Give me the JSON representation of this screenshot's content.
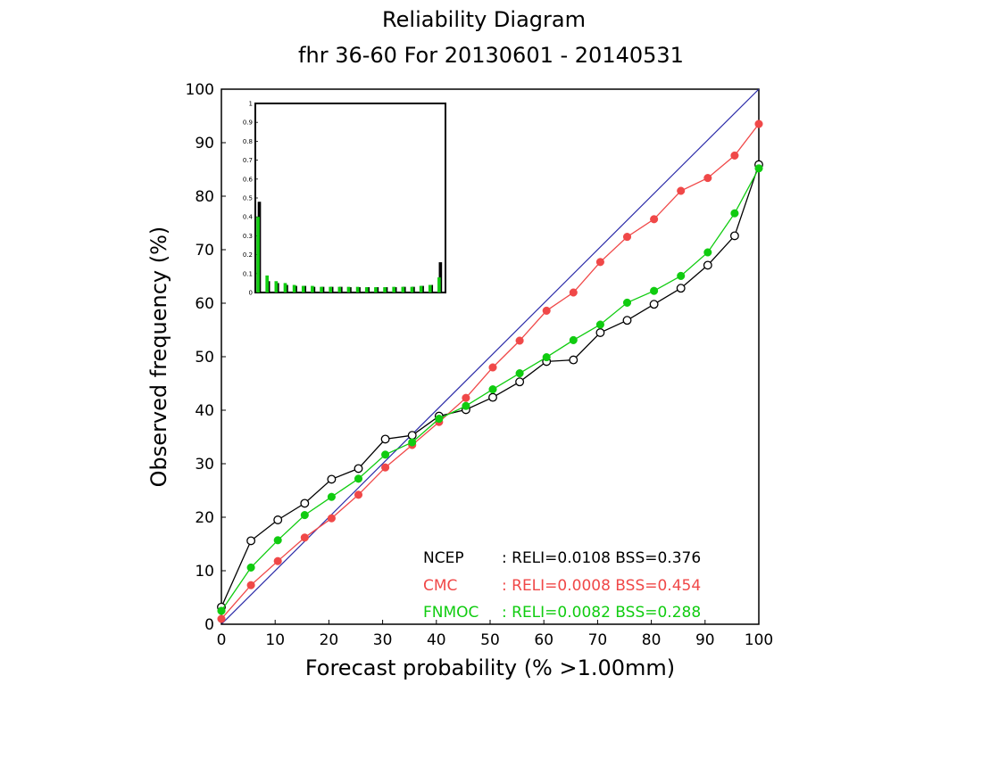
{
  "chart_data": {
    "type": "line",
    "title": "Reliability Diagram",
    "subtitle": "fhr 36-60 For 20130601 - 20140531",
    "xlabel": "Forecast probability (% >1.00mm)",
    "ylabel": "Observed frequency (%)",
    "xlim": [
      0,
      100
    ],
    "ylim": [
      0,
      100
    ],
    "x_ticks": [
      "0",
      "10",
      "20",
      "30",
      "40",
      "50",
      "60",
      "70",
      "80",
      "90",
      "100"
    ],
    "y_ticks": [
      "0",
      "10",
      "20",
      "30",
      "40",
      "50",
      "60",
      "70",
      "80",
      "90",
      "100"
    ],
    "diagonal_color": "#2a2aa8",
    "series": [
      {
        "name": "NCEP",
        "color": "#000000",
        "marker": "open-circle",
        "stats": ": RELI=0.0108 BSS=0.376",
        "x": [
          0,
          5.5,
          10.5,
          15.5,
          20.5,
          25.5,
          30.5,
          35.5,
          40.5,
          45.5,
          50.5,
          55.5,
          60.5,
          65.5,
          70.5,
          75.5,
          80.5,
          85.5,
          90.5,
          95.5,
          100
        ],
        "y": [
          3.2,
          15.6,
          19.5,
          22.6,
          27.1,
          29.1,
          34.6,
          35.3,
          38.9,
          40.1,
          42.4,
          45.3,
          49.1,
          49.4,
          54.5,
          56.8,
          59.8,
          62.8,
          67.1,
          72.6,
          85.9
        ]
      },
      {
        "name": "CMC",
        "color": "#f04848",
        "marker": "filled-circle",
        "stats": ": RELI=0.0008 BSS=0.454",
        "x": [
          0,
          5.5,
          10.5,
          15.5,
          20.5,
          25.5,
          30.5,
          35.5,
          40.5,
          45.5,
          50.5,
          55.5,
          60.5,
          65.5,
          70.5,
          75.5,
          80.5,
          85.5,
          90.5,
          95.5,
          100
        ],
        "y": [
          1.0,
          7.3,
          11.8,
          16.2,
          19.8,
          24.2,
          29.3,
          33.5,
          37.8,
          42.3,
          48.0,
          53.0,
          58.6,
          62.0,
          67.7,
          72.4,
          75.7,
          81.0,
          83.4,
          87.6,
          93.5
        ]
      },
      {
        "name": "FNMOC",
        "color": "#10cc10",
        "marker": "filled-circle",
        "stats": ": RELI=0.0082 BSS=0.288",
        "x": [
          0,
          5.5,
          10.5,
          15.5,
          20.5,
          25.5,
          30.5,
          35.5,
          40.5,
          45.5,
          50.5,
          55.5,
          60.5,
          65.5,
          70.5,
          75.5,
          80.5,
          85.5,
          90.5,
          95.5,
          100
        ],
        "y": [
          2.5,
          10.6,
          15.7,
          20.4,
          23.8,
          27.2,
          31.7,
          34.0,
          38.4,
          40.8,
          43.9,
          46.9,
          49.9,
          53.1,
          56.0,
          60.1,
          62.3,
          65.1,
          69.5,
          76.8,
          85.2
        ]
      }
    ],
    "inset": {
      "type": "bar",
      "ylim": [
        0,
        1
      ],
      "y_ticks": [
        "0",
        "0.1",
        "0.2",
        "0.3",
        "0.4",
        "0.5",
        "0.6",
        "0.7",
        "0.8",
        "0.9",
        "1"
      ],
      "bins": 21,
      "series": [
        {
          "color": "#000000",
          "values": [
            0.48,
            0.06,
            0.05,
            0.04,
            0.035,
            0.035,
            0.03,
            0.03,
            0.03,
            0.03,
            0.028,
            0.028,
            0.028,
            0.028,
            0.028,
            0.028,
            0.03,
            0.03,
            0.035,
            0.04,
            0.16
          ]
        },
        {
          "color": "#10cc10",
          "values": [
            0.4,
            0.09,
            0.06,
            0.05,
            0.04,
            0.035,
            0.035,
            0.03,
            0.03,
            0.03,
            0.03,
            0.03,
            0.028,
            0.028,
            0.028,
            0.03,
            0.03,
            0.03,
            0.035,
            0.04,
            0.08
          ]
        }
      ]
    }
  }
}
